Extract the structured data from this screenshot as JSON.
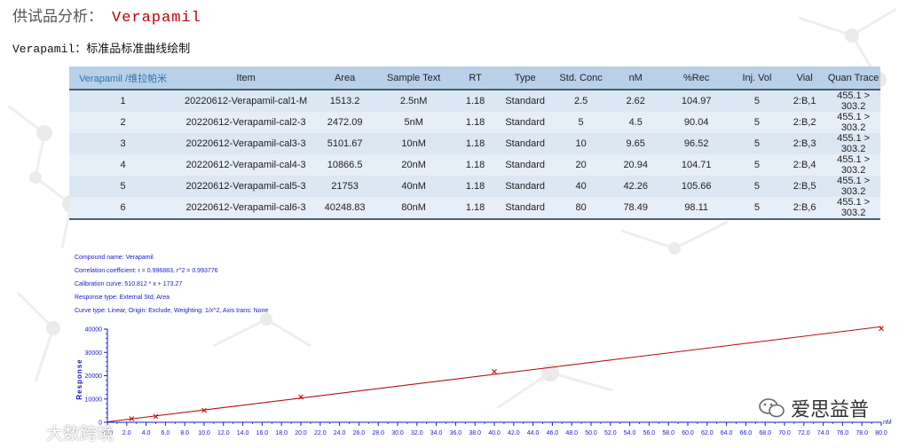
{
  "header": {
    "label": "供试品分析：",
    "sample": "Verapamil"
  },
  "subtitle": "Verapamil：标准品标准曲线绘制",
  "table": {
    "headers": [
      "Verapamil /维拉帕米",
      "Item",
      "Area",
      "Sample Text",
      "RT",
      "Type",
      "Std. Conc",
      "nM",
      "%Rec",
      "Inj. Vol",
      "Vial",
      "Quan Trace"
    ],
    "rows": [
      [
        "1",
        "20220612-Verapamil-cal1-M",
        "1513.2",
        "2.5nM",
        "1.18",
        "Standard",
        "2.5",
        "2.62",
        "104.97",
        "5",
        "2:B,1",
        "455.1 > 303.2"
      ],
      [
        "2",
        "20220612-Verapamil-cal2-3",
        "2472.09",
        "5nM",
        "1.18",
        "Standard",
        "5",
        "4.5",
        "90.04",
        "5",
        "2:B,2",
        "455.1 > 303.2"
      ],
      [
        "3",
        "20220612-Verapamil-cal3-3",
        "5101.67",
        "10nM",
        "1.18",
        "Standard",
        "10",
        "9.65",
        "96.52",
        "5",
        "2:B,3",
        "455.1 > 303.2"
      ],
      [
        "4",
        "20220612-Verapamil-cal4-3",
        "10866.5",
        "20nM",
        "1.18",
        "Standard",
        "20",
        "20.94",
        "104.71",
        "5",
        "2:B,4",
        "455.1 > 303.2"
      ],
      [
        "5",
        "20220612-Verapamil-cal5-3",
        "21753",
        "40nM",
        "1.18",
        "Standard",
        "40",
        "42.26",
        "105.66",
        "5",
        "2:B,5",
        "455.1 > 303.2"
      ],
      [
        "6",
        "20220612-Verapamil-cal6-3",
        "40248.83",
        "80nM",
        "1.18",
        "Standard",
        "80",
        "78.49",
        "98.11",
        "5",
        "2:B,6",
        "455.1 > 303.2"
      ]
    ]
  },
  "calibration": {
    "compound": "Compound name: Verapamil",
    "correlation": "Correlation coefficient: r = 0.996883, r^2 = 0.993776",
    "curve": "Calibration curve: 510.812 * x + 173.27",
    "response": "Response type: External Std, Area",
    "curve_type": "Curve type: Linear, Origin: Exclude, Weighting: 1/x^2, Axis trans: None"
  },
  "chart_data": {
    "type": "scatter",
    "ylabel": "Response",
    "xlabel": "nM",
    "x_unit": "nM",
    "xlim": [
      0,
      80
    ],
    "ylim": [
      0,
      40000
    ],
    "x_ticks": [
      "-0.0",
      "2.0",
      "4.0",
      "6.0",
      "8.0",
      "10.0",
      "12.0",
      "14.0",
      "16.0",
      "18.0",
      "20.0",
      "22.0",
      "24.0",
      "26.0",
      "28.0",
      "30.0",
      "32.0",
      "34.0",
      "36.0",
      "38.0",
      "40.0",
      "42.0",
      "44.0",
      "46.0",
      "48.0",
      "50.0",
      "52.0",
      "54.0",
      "56.0",
      "58.0",
      "60.0",
      "62.0",
      "64.0",
      "66.0",
      "68.0",
      "70.0",
      "72.0",
      "74.0",
      "76.0",
      "78.0",
      "80.0"
    ],
    "y_ticks": [
      "0",
      "10000",
      "20000",
      "30000",
      "40000"
    ],
    "points": [
      {
        "x": 2.5,
        "y": 1513.2
      },
      {
        "x": 5,
        "y": 2472.09
      },
      {
        "x": 10,
        "y": 5101.67
      },
      {
        "x": 20,
        "y": 10866.5
      },
      {
        "x": 40,
        "y": 21753
      },
      {
        "x": 80,
        "y": 40248.83
      }
    ],
    "fit": {
      "slope": 510.812,
      "intercept": 173.27
    },
    "colors": {
      "line": "#b01010",
      "marker": "#c00000",
      "axis": "#1a1ac8"
    }
  },
  "watermarks": {
    "right": "爱思益普",
    "left": "大数跨境"
  }
}
